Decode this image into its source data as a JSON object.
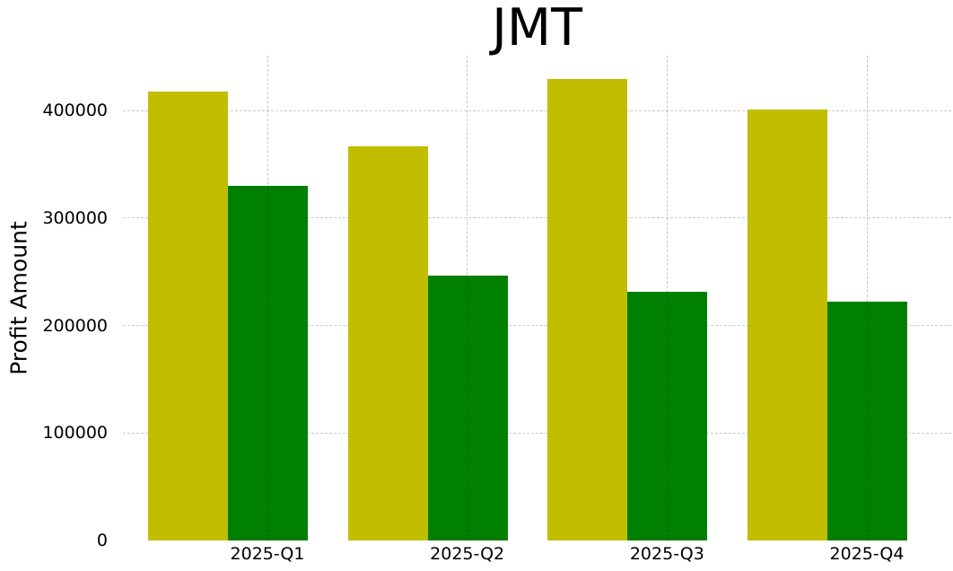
{
  "chart_data": {
    "type": "bar",
    "title": "JMT",
    "xlabel": "",
    "ylabel": "Profit Amount",
    "categories": [
      "2025-Q1",
      "2025-Q2",
      "2025-Q3",
      "2025-Q4"
    ],
    "series": [
      {
        "name": "yellow-series",
        "color": "#c1bd00",
        "values": [
          418000,
          367000,
          429000,
          401000
        ]
      },
      {
        "name": "green-series",
        "color": "#008000",
        "values": [
          330000,
          246000,
          231000,
          222000
        ]
      }
    ],
    "ylim": [
      0,
      451000
    ],
    "yticks": [
      0,
      100000,
      200000,
      300000,
      400000
    ],
    "grid": true,
    "grid_style": "dashed",
    "legend": "none",
    "background": "#ffffff",
    "grid_color": "#cccccc",
    "text_color": "#000000"
  }
}
